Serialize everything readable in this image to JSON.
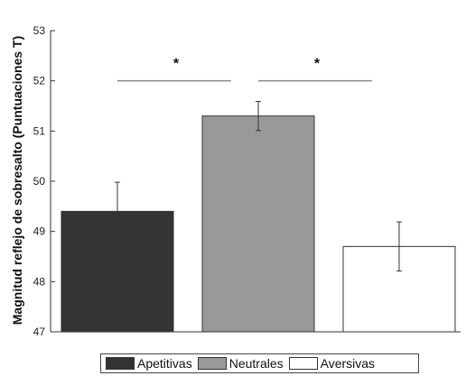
{
  "chart_data": {
    "type": "bar",
    "categories": [
      "Apetitivas",
      "Neutrales",
      "Aversivas"
    ],
    "values": [
      49.4,
      51.3,
      48.7
    ],
    "errors": [
      0.58,
      0.29,
      0.49
    ],
    "colors": [
      "#333333",
      "#999999",
      "#ffffff"
    ],
    "ylabel": "Magnitud reflejo de sobresalto (Puntuaciones T)",
    "ylim": [
      47,
      53
    ],
    "yticks": [
      "47",
      "48",
      "49",
      "50",
      "51",
      "52",
      "53"
    ],
    "significance": [
      {
        "from": 0,
        "to": 1,
        "label": "*"
      },
      {
        "from": 1,
        "to": 2,
        "label": "*"
      }
    ],
    "legend": [
      "Apetitivas",
      "Neutrales",
      "Aversivas"
    ],
    "legend_position": "bottom"
  }
}
